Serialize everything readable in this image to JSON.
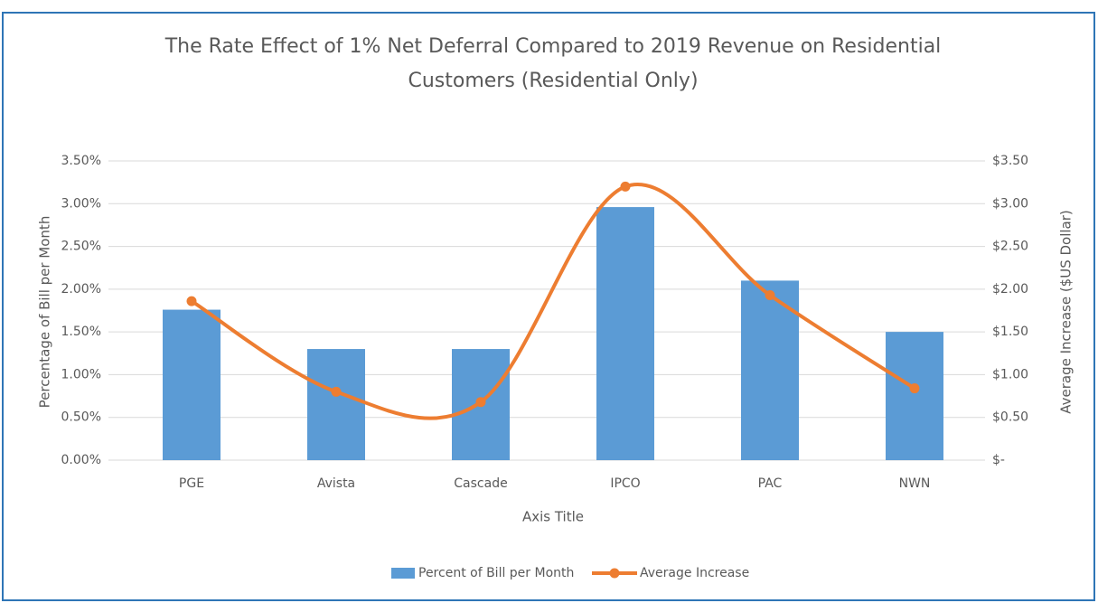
{
  "chart_data": {
    "type": "combo",
    "title": [
      "The Rate Effect of 1% Net Deferral Compared to 2019 Revenue on Residential",
      "Customers (Residential Only)"
    ],
    "x_label": "Axis Title",
    "y_label": "Percentage of Bill per Month",
    "y2_label": "Average Increase ($US Dollar)",
    "categories": [
      "PGE",
      "Avista",
      "Cascade",
      "IPCO",
      "PAC",
      "NWN"
    ],
    "series": [
      {
        "name": "Percent of Bill per Month",
        "type": "bar",
        "color": "#5b9bd5",
        "axis": "y",
        "values": [
          1.76,
          1.3,
          1.3,
          2.96,
          2.1,
          1.5
        ]
      },
      {
        "name": "Average Increase",
        "type": "line",
        "color": "#ed7d31",
        "axis": "y2",
        "values": [
          1.86,
          0.8,
          0.68,
          3.2,
          1.93,
          0.84
        ]
      }
    ],
    "ylim": [
      0,
      3.5
    ],
    "yticks": [
      {
        "value": 0,
        "label": "0.00%"
      },
      {
        "value": 0.5,
        "label": "0.50%"
      },
      {
        "value": 1,
        "label": "1.00%"
      },
      {
        "value": 1.5,
        "label": "1.50%"
      },
      {
        "value": 2,
        "label": "2.00%"
      },
      {
        "value": 2.5,
        "label": "2.50%"
      },
      {
        "value": 3,
        "label": "3.00%"
      },
      {
        "value": 3.5,
        "label": "3.50%"
      }
    ],
    "y2lim": [
      0,
      3.5
    ],
    "y2ticks": [
      {
        "value": 0,
        "label": "$-"
      },
      {
        "value": 0.5,
        "label": "$0.50"
      },
      {
        "value": 1,
        "label": "$1.00"
      },
      {
        "value": 1.5,
        "label": "$1.50"
      },
      {
        "value": 2,
        "label": "$2.00"
      },
      {
        "value": 2.5,
        "label": "$2.50"
      },
      {
        "value": 3,
        "label": "$3.00"
      },
      {
        "value": 3.5,
        "label": "$3.50"
      }
    ],
    "grid": true,
    "legend": "bottom"
  }
}
